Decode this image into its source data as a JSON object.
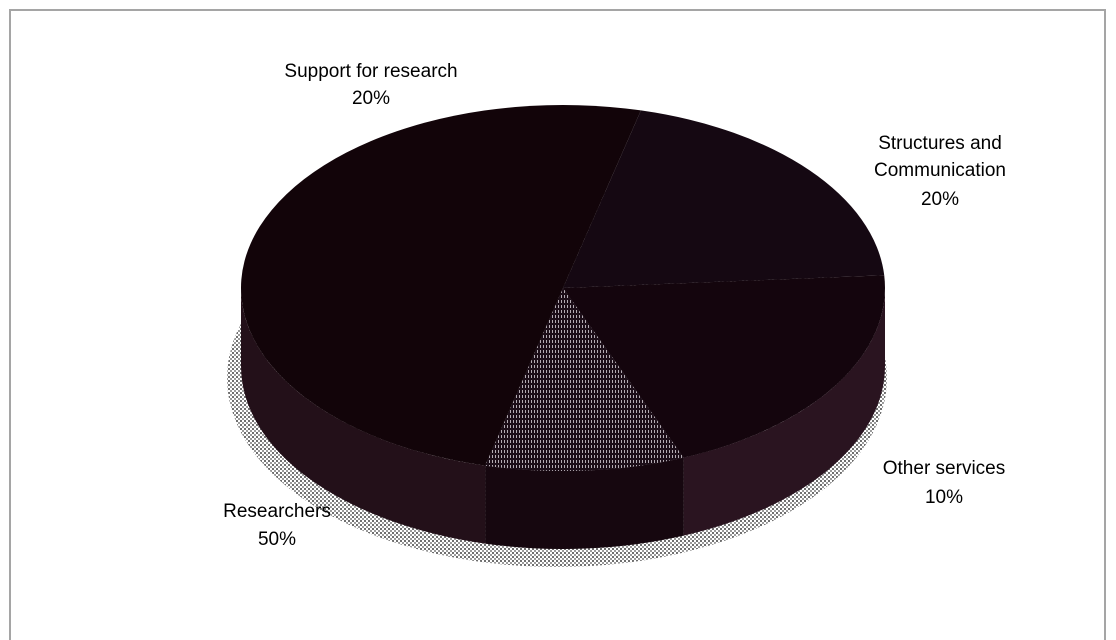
{
  "chart_data": {
    "type": "pie",
    "slices": [
      {
        "label": "Support for research",
        "percent_label": "20%",
        "value": 20
      },
      {
        "label": "Structures and Communication",
        "percent_label": "20%",
        "value": 20
      },
      {
        "label": "Other services",
        "percent_label": "10%",
        "value": 10
      },
      {
        "label": "Researchers",
        "percent_label": "50%",
        "value": 50
      }
    ],
    "three_d": true,
    "legend": "none"
  },
  "colors": {
    "top": [
      "#150812",
      "#14050d",
      "#1a0b16",
      "#120409"
    ],
    "side": [
      "#190a14",
      "#2a1420",
      "#16070f",
      "#231019"
    ],
    "shadow": "#8a8a8a",
    "border": "#a5a5a5"
  }
}
